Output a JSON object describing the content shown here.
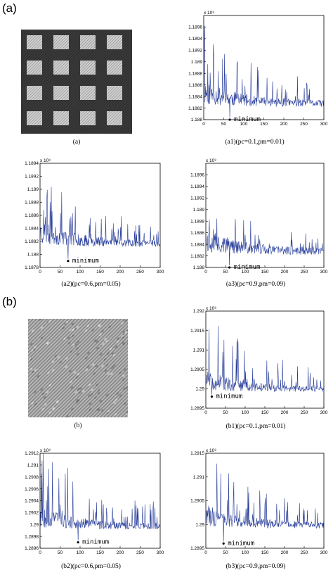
{
  "labels": {
    "a": "(a)",
    "b": "(b)"
  },
  "images": [
    {
      "id": "a",
      "caption": "(a)",
      "pattern": "plaid",
      "colors": [
        "#3a3a3a",
        "#d8d8d8"
      ]
    },
    {
      "id": "b",
      "caption": "(b)",
      "pattern": "twill",
      "colors": [
        "#8a8a8a",
        "#e8e8e8"
      ]
    }
  ],
  "chart_data": [
    {
      "id": "a1",
      "type": "line",
      "caption": "(a1)(pc=0.1,pm=0.01)",
      "exponent": "x 10⁸",
      "xlim": [
        0,
        300
      ],
      "xticks": [
        "0",
        "50",
        "100",
        "150",
        "200",
        "250",
        "300"
      ],
      "ylim": [
        1.188,
        1.1898
      ],
      "yticks": [
        "1.188",
        "1.1882",
        "1.1884",
        "1.1886",
        "1.1888",
        "1.189",
        "1.1892",
        "1.1894",
        "1.1896"
      ],
      "annotation": "minimum",
      "min_point": [
        65,
        1.188
      ],
      "base": 1.1882,
      "spread": 0.0009,
      "decay": 0.0005,
      "seed": 11,
      "color": "#2a3f9a"
    },
    {
      "id": "a2",
      "type": "line",
      "caption": "(a2)(pc=0.6,pm=0.05)",
      "exponent": "x 10⁸",
      "xlim": [
        0,
        300
      ],
      "xticks": [
        "0",
        "50",
        "100",
        "150",
        "200",
        "250",
        "300"
      ],
      "ylim": [
        1.1878,
        1.1894
      ],
      "yticks": [
        "1.1878",
        "1.188",
        "1.1882",
        "1.1884",
        "1.1886",
        "1.1888",
        "1.189",
        "1.1892",
        "1.1894"
      ],
      "annotation": "minimum",
      "min_point": [
        70,
        1.1879
      ],
      "base": 1.1881,
      "spread": 0.0008,
      "decay": 0.0004,
      "seed": 23,
      "color": "#2a3f9a"
    },
    {
      "id": "a3",
      "type": "line",
      "caption": "(a3)(pc=0.9,pm=0.09)",
      "exponent": "x 10⁸",
      "xlim": [
        0,
        300
      ],
      "xticks": [
        "0",
        "50",
        "100",
        "150",
        "200",
        "250",
        "300"
      ],
      "ylim": [
        1.188,
        1.1898
      ],
      "yticks": [
        "1.188",
        "1.1882",
        "1.1884",
        "1.1886",
        "1.1888",
        "1.189",
        "1.1892",
        "1.1894",
        "1.1896"
      ],
      "annotation": "minimum",
      "min_point": [
        60,
        1.188
      ],
      "base": 1.1882,
      "spread": 0.0009,
      "decay": 0.0004,
      "seed": 37,
      "color": "#2a3f9a"
    },
    {
      "id": "b1",
      "type": "line",
      "caption": "(b1)(pc=0.1,pm=0.01)",
      "exponent": "x 10⁸",
      "xlim": [
        0,
        300
      ],
      "xticks": [
        "0",
        "50",
        "100",
        "150",
        "200",
        "250",
        "300"
      ],
      "ylim": [
        1.2895,
        1.292
      ],
      "yticks": [
        "1.2895",
        "1.29",
        "1.2905",
        "1.291",
        "1.2915",
        "1.292"
      ],
      "annotation": "minimum",
      "min_point": [
        15,
        1.2898
      ],
      "base": 1.2899,
      "spread": 0.0011,
      "decay": 0.0008,
      "seed": 51,
      "color": "#2a3f9a"
    },
    {
      "id": "b2",
      "type": "line",
      "caption": "(b2)(pc=0.6,pm=0.05)",
      "exponent": "x 10⁸",
      "xlim": [
        0,
        300
      ],
      "xticks": [
        "0",
        "50",
        "100",
        "150",
        "200",
        "250",
        "300"
      ],
      "ylim": [
        1.2896,
        1.2912
      ],
      "yticks": [
        "1.2896",
        "1.2898",
        "1.29",
        "1.2902",
        "1.2904",
        "1.2906",
        "1.2908",
        "1.291",
        "1.2912"
      ],
      "annotation": "minimum",
      "min_point": [
        95,
        1.2897
      ],
      "base": 1.2899,
      "spread": 0.0008,
      "decay": 0.0005,
      "seed": 67,
      "color": "#2a3f9a"
    },
    {
      "id": "b3",
      "type": "line",
      "caption": "(b3)(pc=0.9,pm=0.09)",
      "exponent": "x 10⁸",
      "xlim": [
        0,
        300
      ],
      "xticks": [
        "0",
        "50",
        "100",
        "150",
        "200",
        "250",
        "300"
      ],
      "ylim": [
        1.2895,
        1.2915
      ],
      "yticks": [
        "1.2895",
        "1.29",
        "1.2905",
        "1.291",
        "1.2915"
      ],
      "annotation": "minimum",
      "min_point": [
        45,
        1.2896
      ],
      "base": 1.2899,
      "spread": 0.001,
      "decay": 0.0006,
      "seed": 83,
      "color": "#2a3f9a"
    }
  ]
}
